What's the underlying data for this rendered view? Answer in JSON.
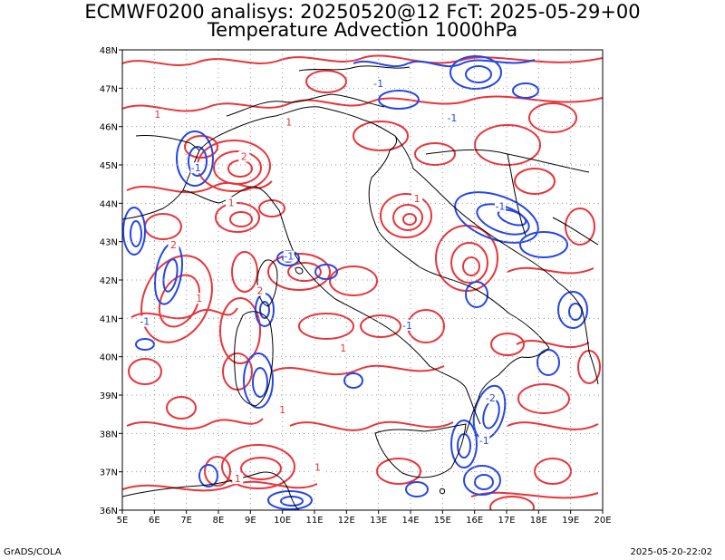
{
  "header": {
    "line1": "ECMWF0200 analisys: 20250520@12 FcT: 2025-05-29+00",
    "line2": "Temperature Advection 1000hPa"
  },
  "footer": {
    "left": "GrADS/COLA",
    "right": "2025-05-20-22:02"
  },
  "map": {
    "lon_range": [
      5,
      20
    ],
    "lat_range": [
      36,
      48
    ],
    "lon_labels": [
      "5E",
      "6E",
      "7E",
      "8E",
      "9E",
      "10E",
      "11E",
      "12E",
      "13E",
      "14E",
      "15E",
      "16E",
      "17E",
      "18E",
      "19E",
      "20E"
    ],
    "lat_labels": [
      "36N",
      "37N",
      "38N",
      "39N",
      "40N",
      "41N",
      "42N",
      "43N",
      "44N",
      "45N",
      "46N",
      "47N",
      "48N"
    ],
    "colors": {
      "positive": "#e8343a",
      "negative": "#2546e8",
      "coast": "#000000",
      "grid": "#9a9a9a"
    },
    "contour_labels": [
      {
        "text": "1",
        "lon": 6.1,
        "lat": 46.3,
        "c": "positive"
      },
      {
        "text": "-1",
        "lon": 7.3,
        "lat": 44.9,
        "c": "negative"
      },
      {
        "text": "2",
        "lon": 8.8,
        "lat": 45.2,
        "c": "positive"
      },
      {
        "text": "1",
        "lon": 8.4,
        "lat": 44.0,
        "c": "positive"
      },
      {
        "text": "-1",
        "lon": 13.0,
        "lat": 47.1,
        "c": "negative"
      },
      {
        "text": "1",
        "lon": 10.2,
        "lat": 46.1,
        "c": "positive"
      },
      {
        "text": "-1",
        "lon": 15.3,
        "lat": 46.2,
        "c": "negative"
      },
      {
        "text": "1",
        "lon": 14.2,
        "lat": 44.1,
        "c": "positive"
      },
      {
        "text": "-1",
        "lon": 16.8,
        "lat": 43.9,
        "c": "negative"
      },
      {
        "text": "2",
        "lon": 6.6,
        "lat": 42.9,
        "c": "positive"
      },
      {
        "text": "-1",
        "lon": 10.2,
        "lat": 42.6,
        "c": "negative"
      },
      {
        "text": "-1",
        "lon": 5.7,
        "lat": 40.9,
        "c": "negative"
      },
      {
        "text": "1",
        "lon": 7.4,
        "lat": 41.5,
        "c": "positive"
      },
      {
        "text": "2",
        "lon": 9.3,
        "lat": 41.7,
        "c": "positive"
      },
      {
        "text": "-1",
        "lon": 13.9,
        "lat": 40.8,
        "c": "negative"
      },
      {
        "text": "1",
        "lon": 11.9,
        "lat": 40.2,
        "c": "positive"
      },
      {
        "text": "1",
        "lon": 10.0,
        "lat": 38.6,
        "c": "positive"
      },
      {
        "text": "-2",
        "lon": 16.5,
        "lat": 38.9,
        "c": "negative"
      },
      {
        "text": "1",
        "lon": 8.6,
        "lat": 36.8,
        "c": "positive"
      },
      {
        "text": "1",
        "lon": 11.1,
        "lat": 37.1,
        "c": "positive"
      },
      {
        "text": "-1",
        "lon": 16.3,
        "lat": 37.8,
        "c": "negative"
      }
    ]
  }
}
